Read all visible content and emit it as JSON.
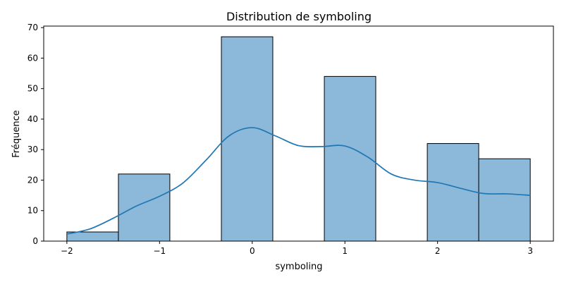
{
  "chart_data": {
    "type": "bar",
    "title": "Distribution de symboling",
    "xlabel": "symboling",
    "ylabel": "Fréquence",
    "xlim": [
      -2.25,
      3.25
    ],
    "ylim": [
      0,
      70.5
    ],
    "x_ticks": [
      -2,
      -1,
      0,
      1,
      2,
      3
    ],
    "x_tick_labels": [
      "−2",
      "−1",
      "0",
      "1",
      "2",
      "3"
    ],
    "y_ticks": [
      0,
      10,
      20,
      30,
      40,
      50,
      60,
      70
    ],
    "grid": false,
    "bins": [
      {
        "x0": -2.0,
        "x1": -1.444,
        "value": 3
      },
      {
        "x0": -1.444,
        "x1": -0.889,
        "value": 22
      },
      {
        "x0": -0.889,
        "x1": -0.333,
        "value": 0
      },
      {
        "x0": -0.333,
        "x1": 0.222,
        "value": 67
      },
      {
        "x0": 0.222,
        "x1": 0.778,
        "value": 0
      },
      {
        "x0": 0.778,
        "x1": 1.333,
        "value": 54
      },
      {
        "x0": 1.333,
        "x1": 1.889,
        "value": 0
      },
      {
        "x0": 1.889,
        "x1": 2.444,
        "value": 32
      },
      {
        "x0": 2.444,
        "x1": 3.0,
        "value": 27
      }
    ],
    "kde": {
      "x": [
        -2.0,
        -1.75,
        -1.5,
        -1.25,
        -1.0,
        -0.75,
        -0.5,
        -0.25,
        0.0,
        0.25,
        0.5,
        0.75,
        1.0,
        1.25,
        1.5,
        1.75,
        2.0,
        2.25,
        2.5,
        2.75,
        3.0
      ],
      "y": [
        2.3,
        4.0,
        7.5,
        11.5,
        14.7,
        19.0,
        26.5,
        34.5,
        37.2,
        34.5,
        31.3,
        31.0,
        31.2,
        27.5,
        22.0,
        20.0,
        19.2,
        17.3,
        15.6,
        15.5,
        15.0
      ]
    },
    "colors": {
      "bar_fill": "#8cb8da",
      "bar_edge": "#000000",
      "kde_line": "#1f77b4"
    }
  }
}
